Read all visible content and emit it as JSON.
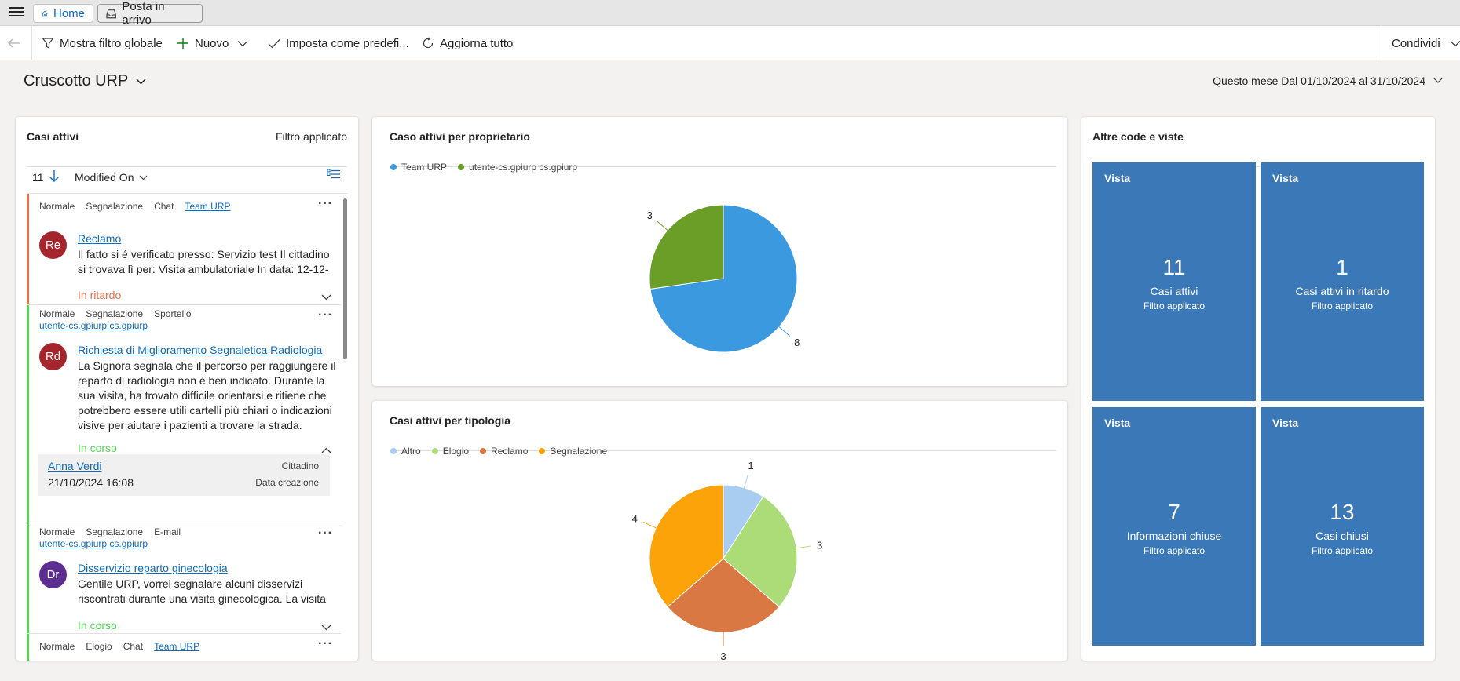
{
  "tabs": {
    "home_label": "Home",
    "inbox_label": "Posta in arrivo"
  },
  "toolbar": {
    "global_filter": "Mostra filtro globale",
    "new": "Nuovo",
    "set_default": "Imposta come predefi...",
    "refresh_all": "Aggiorna tutto",
    "share": "Condividi"
  },
  "dashboard": {
    "title": "Cruscotto URP",
    "period": "Questo mese Dal 01/10/2024 al 31/10/2024"
  },
  "active_cases": {
    "title": "Casi attivi",
    "filter_status": "Filtro applicato",
    "count": "11",
    "sort_field": "Modified On",
    "items": [
      {
        "tags": [
          "Normale",
          "Segnalazione",
          "Chat"
        ],
        "owner": "Team URP",
        "initials": "Re",
        "title": "Reclamo",
        "description": "Il fatto si é verificato presso: Servizio test Il cittadino si trovava lì per: Visita ambulatoriale In data: 12-12-",
        "status": "In ritardo"
      },
      {
        "tags": [
          "Normale",
          "Segnalazione",
          "Sportello"
        ],
        "owner": "utente-cs.gpiurp cs.gpiurp",
        "initials": "Rd",
        "title": "Richiesta di Miglioramento Segnaletica Radiologia",
        "description": "La Signora segnala che il percorso per raggiungere il reparto di radiologia non è ben indicato. Durante la sua visita, ha trovato difficile orientarsi e ritiene che potrebbero essere utili cartelli più chiari o indicazioni visive per aiutare i pazienti a trovare la strada.",
        "status": "In corso",
        "contact": {
          "name": "Anna Verdi",
          "role": "Cittadino",
          "date": "21/10/2024 16:08",
          "date_label": "Data creazione"
        }
      },
      {
        "tags": [
          "Normale",
          "Segnalazione",
          "E-mail"
        ],
        "owner": "utente-cs.gpiurp cs.gpiurp",
        "initials": "Dr",
        "title": "Disservizio reparto ginecologia",
        "description": "Gentile URP, vorrei segnalare alcuni disservizi riscontrati durante una visita ginecologica. La visita",
        "status": "In corso"
      },
      {
        "tags": [
          "Normale",
          "Elogio",
          "Chat"
        ],
        "owner": "Team URP"
      }
    ]
  },
  "chart_owner": {
    "title": "Caso attivi per proprietario",
    "legend": [
      "Team URP",
      "utente-cs.gpiurp cs.gpiurp"
    ],
    "colors": [
      "#3b99e0",
      "#6b9e26"
    ]
  },
  "chart_type": {
    "title": "Casi attivi per tipologia",
    "legend": [
      "Altro",
      "Elogio",
      "Reclamo",
      "Segnalazione"
    ],
    "colors": [
      "#a9cdf0",
      "#acdc78",
      "#d97843",
      "#fca30a"
    ]
  },
  "chart_data": [
    {
      "type": "pie",
      "title": "Caso attivi per proprietario",
      "categories": [
        "Team URP",
        "utente-cs.gpiurp cs.gpiurp"
      ],
      "values": [
        8,
        3
      ]
    },
    {
      "type": "pie",
      "title": "Casi attivi per tipologia",
      "categories": [
        "Altro",
        "Elogio",
        "Reclamo",
        "Segnalazione"
      ],
      "values": [
        1,
        3,
        3,
        4
      ]
    }
  ],
  "other_views": {
    "title": "Altre code e viste",
    "tiles": [
      {
        "label": "Vista",
        "count": "11",
        "name": "Casi attivi",
        "sub": "Filtro applicato"
      },
      {
        "label": "Vista",
        "count": "1",
        "name": "Casi attivi in ritardo",
        "sub": "Filtro applicato"
      },
      {
        "label": "Vista",
        "count": "7",
        "name": "Informazioni chiuse",
        "sub": "Filtro applicato"
      },
      {
        "label": "Vista",
        "count": "13",
        "name": "Casi chiusi",
        "sub": "Filtro applicato"
      }
    ]
  }
}
